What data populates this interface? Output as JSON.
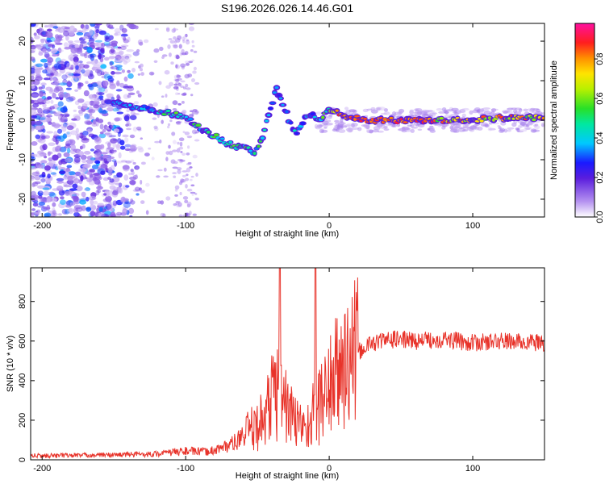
{
  "title": "S196.2026.026.14.46.G01",
  "chart_data": [
    {
      "type": "heatmap",
      "name": "spectrogram",
      "xlabel": "Height of straight line (km)",
      "ylabel": "Frequency (Hz)",
      "xlim": [
        -208,
        150
      ],
      "ylim": [
        -24.5,
        24.5
      ],
      "xticks": [
        -200,
        -100,
        0,
        100
      ],
      "yticks": [
        -20,
        -10,
        0,
        10,
        20
      ],
      "colorbar": {
        "label": "Normalized spectral amplitude",
        "range": [
          0.0,
          0.98
        ],
        "ticks": [
          0.0,
          0.2,
          0.4,
          0.6,
          0.8
        ]
      },
      "ridge": {
        "x": [
          -145,
          -130,
          -115,
          -100,
          -90,
          -80,
          -70,
          -60,
          -52,
          -48,
          -44,
          -40,
          -37,
          -34,
          -30,
          -26,
          -22,
          -18,
          -14,
          -10,
          -6,
          -2,
          0,
          10,
          30,
          60,
          90,
          120,
          150
        ],
        "y": [
          4,
          3,
          2,
          1,
          -2,
          -4,
          -6,
          -7,
          -8,
          -6,
          -1,
          4,
          8,
          6,
          2,
          -2,
          -3,
          0,
          1,
          1,
          0,
          2,
          3,
          1,
          0,
          0,
          0,
          0.6,
          0.6
        ]
      },
      "noise_region_km": [
        -208,
        -140
      ],
      "spectral_blip_km": -100
    },
    {
      "type": "line",
      "name": "snr",
      "xlabel": "Height of straight line (km)",
      "ylabel": "SNR (10 * v/v)",
      "xlim": [
        -208,
        150
      ],
      "ylim": [
        0,
        970
      ],
      "xticks": [
        -200,
        -100,
        0,
        100
      ],
      "yticks": [
        0,
        200,
        400,
        600,
        800
      ],
      "color": "#e8332a",
      "envelope": {
        "x": [
          -208,
          -150,
          -120,
          -100,
          -85,
          -75,
          -65,
          -55,
          -50,
          -45,
          -40,
          -35,
          -30,
          -25,
          -20,
          -15,
          -10,
          -5,
          0,
          5,
          10,
          15,
          20,
          25,
          30,
          40,
          50,
          60,
          80,
          100,
          120,
          150
        ],
        "y": [
          20,
          25,
          30,
          45,
          40,
          60,
          90,
          150,
          170,
          220,
          320,
          350,
          280,
          200,
          180,
          170,
          250,
          300,
          380,
          420,
          470,
          500,
          540,
          570,
          590,
          605,
          610,
          600,
          610,
          590,
          600,
          590
        ]
      },
      "spikes": [
        {
          "x": -34.5,
          "y": 970
        },
        {
          "x": -9.5,
          "y": 970
        }
      ]
    }
  ]
}
